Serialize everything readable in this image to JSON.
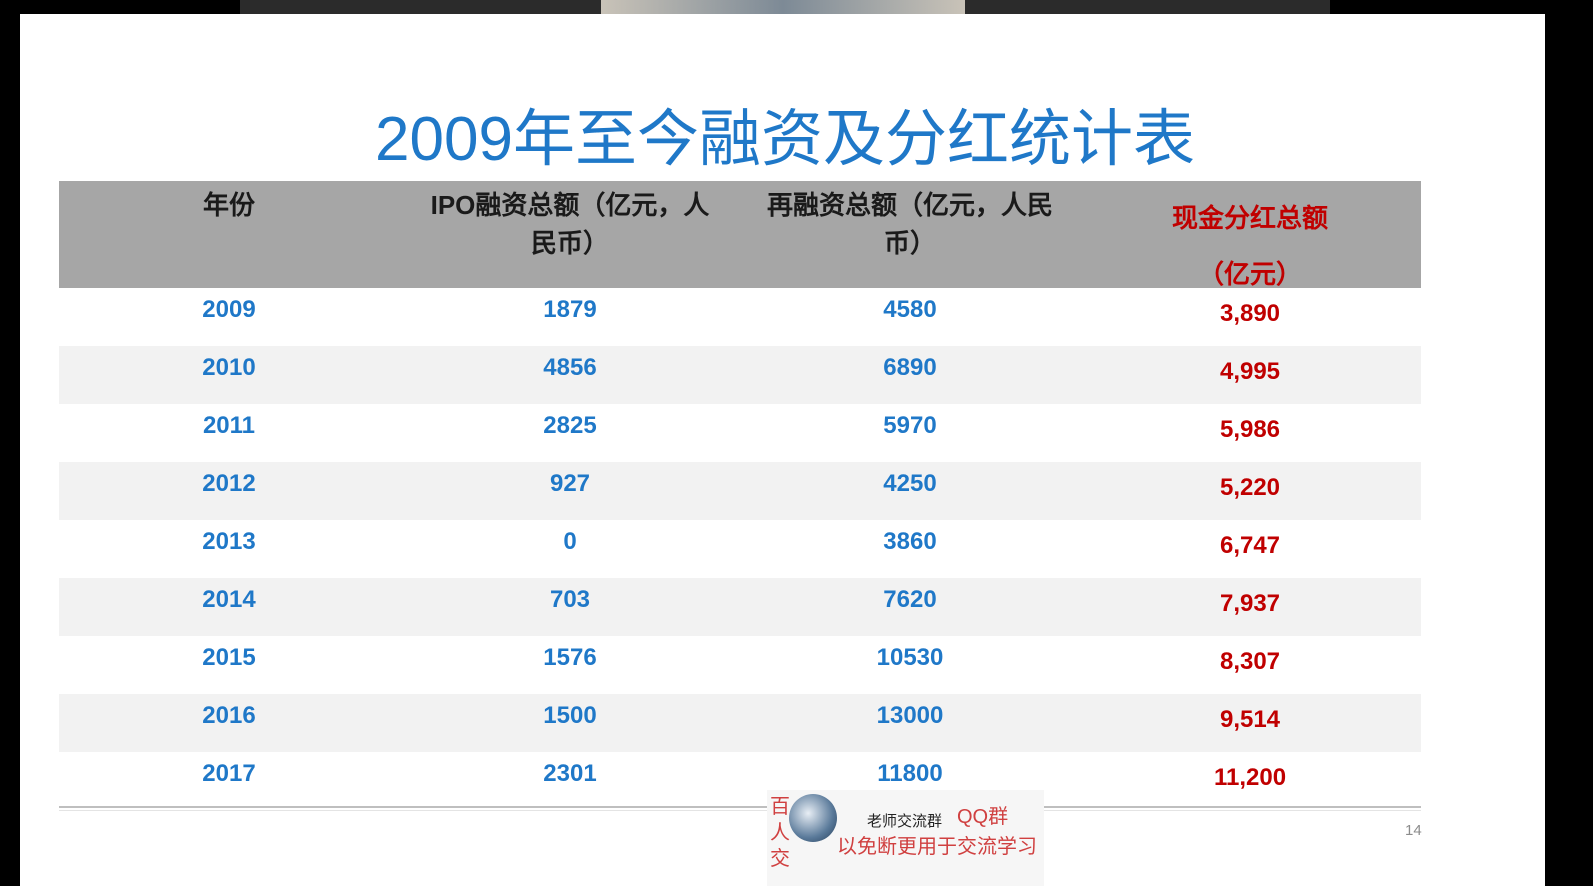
{
  "slide": {
    "title": "2009年至今融资及分红统计表",
    "table": {
      "header": [
        "年份",
        "IPO融资总额（亿元，人民币）",
        "再融资总额（亿元，人民币）",
        "现金分红总额（亿元）"
      ],
      "rows": [
        [
          "2009",
          "1879",
          "4580",
          "3,890"
        ],
        [
          "2010",
          "4856",
          "6890",
          "4,995"
        ],
        [
          "2011",
          "2825",
          "5970",
          "5,986"
        ],
        [
          "2012",
          "927",
          "4250",
          "5,220"
        ],
        [
          "2013",
          "0",
          "3860",
          "6,747"
        ],
        [
          "2014",
          "703",
          "7620",
          "7,937"
        ],
        [
          "2015",
          "1576",
          "10530",
          "8,307"
        ],
        [
          "2016",
          "1500",
          "13000",
          "9,514"
        ],
        [
          "2017",
          "2301",
          "11800",
          "11,200"
        ]
      ]
    },
    "page_number": "14"
  },
  "overlay": {
    "vertical": "百人交",
    "group": "老师交流群",
    "qq": "QQ群",
    "notice": "以免断更用于交流学习"
  }
}
